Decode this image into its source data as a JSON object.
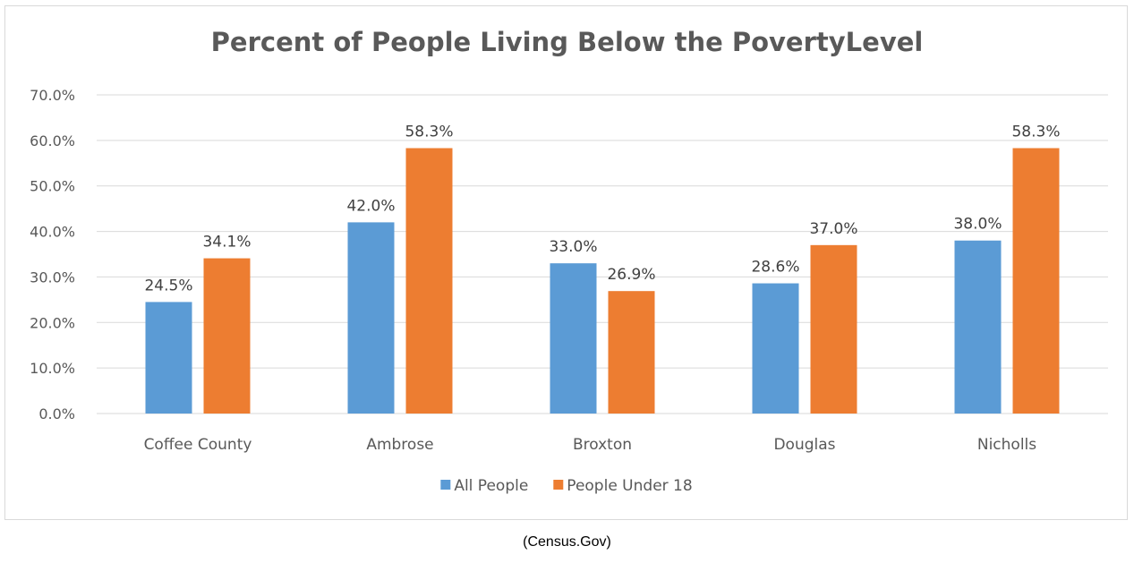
{
  "chart_data": {
    "type": "bar",
    "title": "Percent of People Living Below the PovertyLevel",
    "categories": [
      "Coffee County",
      "Ambrose",
      "Broxton",
      "Douglas",
      "Nicholls"
    ],
    "series": [
      {
        "name": "All People",
        "color": "#5b9bd5",
        "values": [
          24.5,
          42.0,
          33.0,
          28.6,
          38.0
        ],
        "labels": [
          "24.5%",
          "42.0%",
          "33.0%",
          "28.6%",
          "38.0%"
        ]
      },
      {
        "name": "People Under 18",
        "color": "#ed7d31",
        "values": [
          34.1,
          58.3,
          26.9,
          37.0,
          58.3
        ],
        "labels": [
          "34.1%",
          "58.3%",
          "26.9%",
          "37.0%",
          "58.3%"
        ]
      }
    ],
    "ylim": [
      0,
      70
    ],
    "yticks": [
      0,
      10,
      20,
      30,
      40,
      50,
      60,
      70
    ],
    "ytick_labels": [
      "0.0%",
      "10.0%",
      "20.0%",
      "30.0%",
      "40.0%",
      "50.0%",
      "60.0%",
      "70.0%"
    ],
    "grid": true,
    "legend_position": "bottom"
  },
  "source": "(Census.Gov)"
}
